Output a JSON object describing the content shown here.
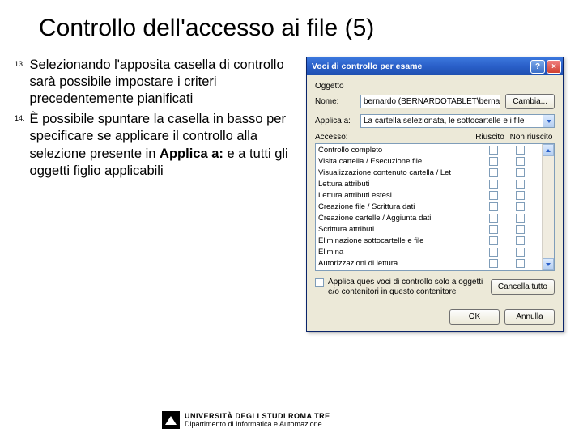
{
  "title": "Controllo dell'accesso ai file (5)",
  "list": [
    {
      "num": "13.",
      "html": "Selezionando l'apposita casella di controllo sarà possibile impostare i criteri precedentemente pianificati"
    },
    {
      "num": "14.",
      "html": "È possibile spuntare la casella in basso per specificare se applicare il controllo alla selezione presente in <b>Applica a:</b>  e a tutti gli oggetti figlio applicabili"
    }
  ],
  "dialog": {
    "title": "Voci di controllo per esame",
    "group": "Oggetto",
    "name_label": "Nome:",
    "name_value": "bernardo (BERNARDOTABLET\\berna",
    "change_btn": "Cambia...",
    "apply_label": "Applica a:",
    "apply_value": "La cartella selezionata, le sottocartelle e i file",
    "access_label": "Accesso:",
    "col_success": "Riuscito",
    "col_fail": "Non riuscito",
    "permissions": [
      "Controllo completo",
      "Visita cartella / Esecuzione file",
      "Visualizzazione contenuto cartella / Let",
      "Lettura attributi",
      "Lettura attributi estesi",
      "Creazione file / Scrittura dati",
      "Creazione cartelle / Aggiunta dati",
      "Scrittura attributi",
      "Eliminazione sottocartelle e file",
      "Elimina",
      "Autorizzazioni di lettura"
    ],
    "apply_only_label": "Applica ques voci di controllo solo a oggetti e/o contenitori in questo contenitore",
    "clear_btn": "Cancella tutto",
    "ok_btn": "OK",
    "cancel_btn": "Annulla",
    "colors": {
      "titlebar": "#2a5fc8",
      "dialog_bg": "#ece9d8",
      "border": "#7f9db9"
    }
  },
  "footer": {
    "line1": "UNIVERSITÀ DEGLI STUDI ROMA TRE",
    "line2": "Dipartimento di Informatica e Automazione"
  }
}
